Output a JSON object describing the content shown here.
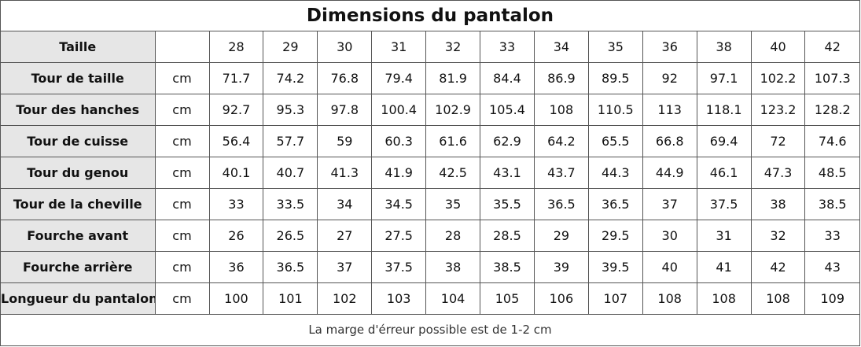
{
  "title": "Dimensions du pantalon",
  "header": {
    "label": "Taille",
    "sizes": [
      28,
      29,
      30,
      31,
      32,
      33,
      34,
      35,
      36,
      38,
      40,
      42
    ]
  },
  "rows": [
    {
      "label": "Tour de taille",
      "unit": "cm",
      "values": [
        71.7,
        74.2,
        76.8,
        79.4,
        81.9,
        84.4,
        86.9,
        89.5,
        92,
        97.1,
        102.2,
        107.3
      ]
    },
    {
      "label": "Tour des hanches",
      "unit": "cm",
      "values": [
        92.7,
        95.3,
        97.8,
        100.4,
        102.9,
        105.4,
        108,
        110.5,
        113,
        118.1,
        123.2,
        128.2
      ]
    },
    {
      "label": "Tour de cuisse",
      "unit": "cm",
      "values": [
        56.4,
        57.7,
        59,
        60.3,
        61.6,
        62.9,
        64.2,
        65.5,
        66.8,
        69.4,
        72,
        74.6
      ]
    },
    {
      "label": "Tour du genou",
      "unit": "cm",
      "values": [
        40.1,
        40.7,
        41.3,
        41.9,
        42.5,
        43.1,
        43.7,
        44.3,
        44.9,
        46.1,
        47.3,
        48.5
      ]
    },
    {
      "label": "Tour de la cheville",
      "unit": "cm",
      "values": [
        33,
        33.5,
        34,
        34.5,
        35,
        35.5,
        36.5,
        36.5,
        37,
        37.5,
        38,
        38.5
      ]
    },
    {
      "label": "Fourche avant",
      "unit": "cm",
      "values": [
        26,
        26.5,
        27,
        27.5,
        28,
        28.5,
        29,
        29.5,
        30,
        31,
        32,
        33
      ]
    },
    {
      "label": "Fourche arrière",
      "unit": "cm",
      "values": [
        36,
        36.5,
        37,
        37.5,
        38,
        38.5,
        39,
        39.5,
        40,
        41,
        42,
        43
      ]
    },
    {
      "label": "Longueur du pantalon",
      "unit": "cm",
      "values": [
        100,
        101,
        102,
        103,
        104,
        105,
        106,
        107,
        108,
        108,
        108,
        109
      ]
    }
  ],
  "note": "La marge d'érreur possible est de 1-2 cm"
}
